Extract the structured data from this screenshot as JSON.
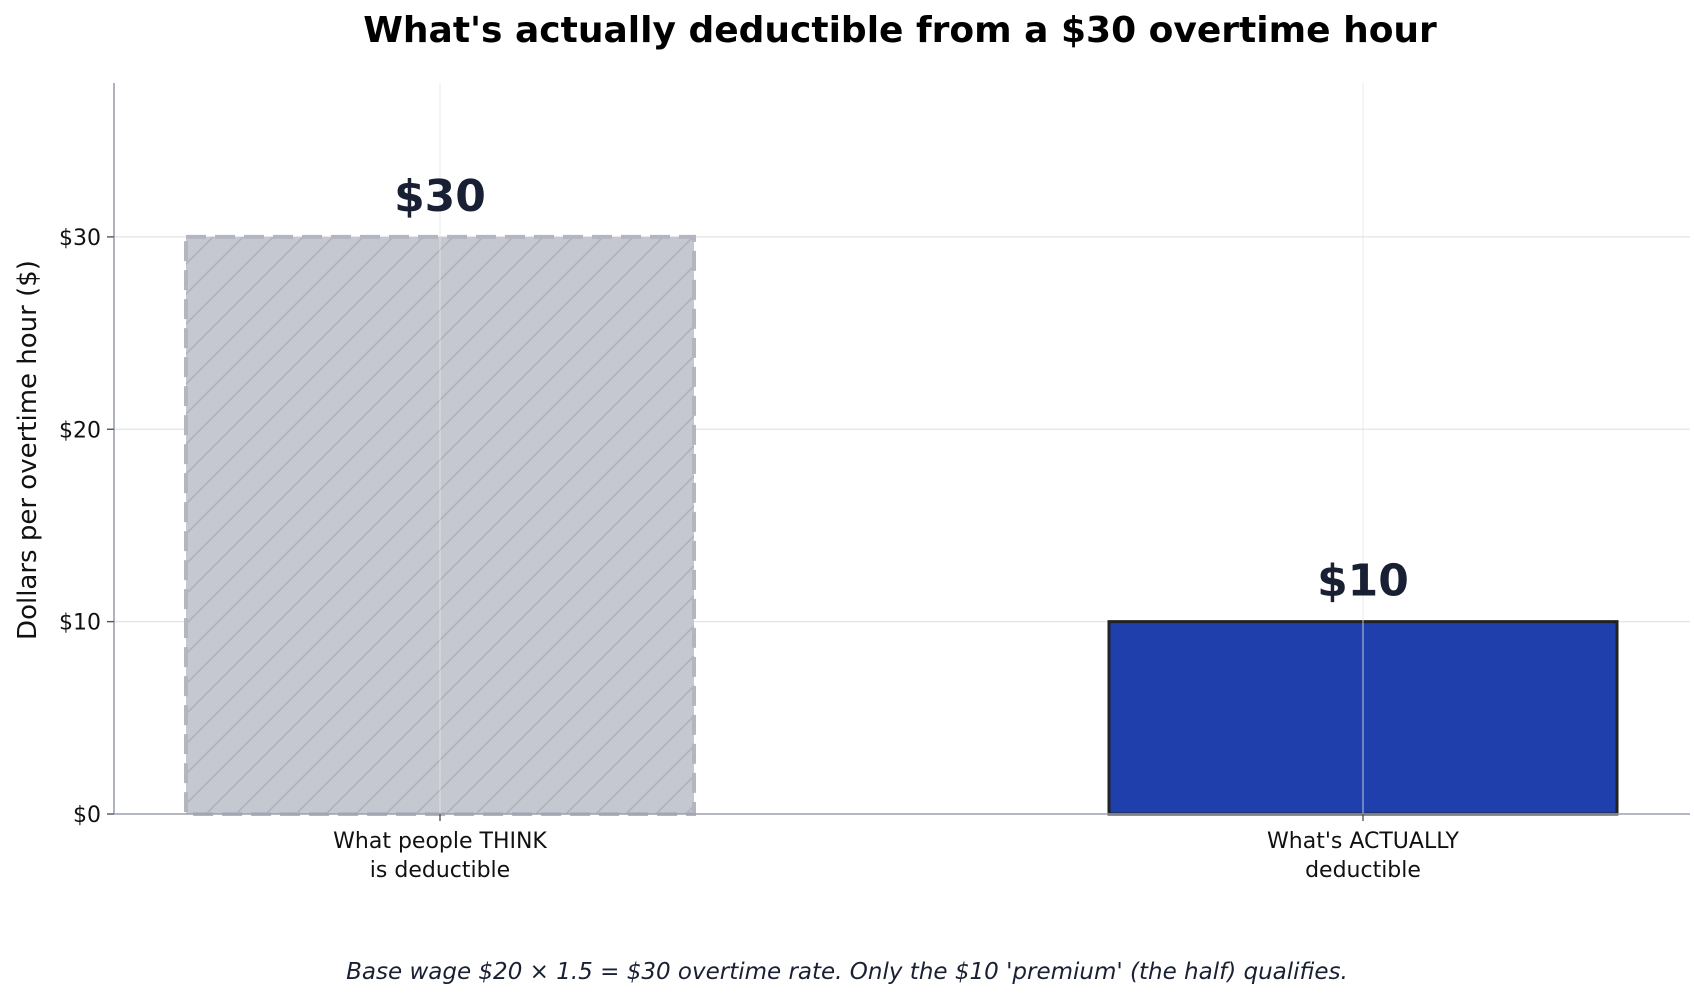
{
  "chart_data": {
    "type": "bar",
    "title": "What's actually deductible from a $30 overtime hour",
    "ylabel": "Dollars per overtime hour ($)",
    "xlabel": "",
    "ylim": [
      0,
      38
    ],
    "yticks": [
      0,
      10,
      20,
      30
    ],
    "ytick_labels": [
      "$0",
      "$10",
      "$20",
      "$30"
    ],
    "grid": true,
    "categories": [
      [
        "What people THINK",
        "is deductible"
      ],
      [
        "What's ACTUALLY",
        "deductible"
      ]
    ],
    "values": [
      30,
      10
    ],
    "value_labels": [
      "$30",
      "$10"
    ],
    "colors": {
      "think_fill": "#c5c8d1",
      "think_edge": "#b3b6c0",
      "actual_fill": "#1f3fad",
      "actual_edge": "#222222",
      "grid": "#e3e4e8",
      "axis": "#9aa0ad"
    },
    "caption": "Base wage $20 × 1.5 = $30 overtime rate.  Only the $10 'premium' (the half) qualifies."
  }
}
